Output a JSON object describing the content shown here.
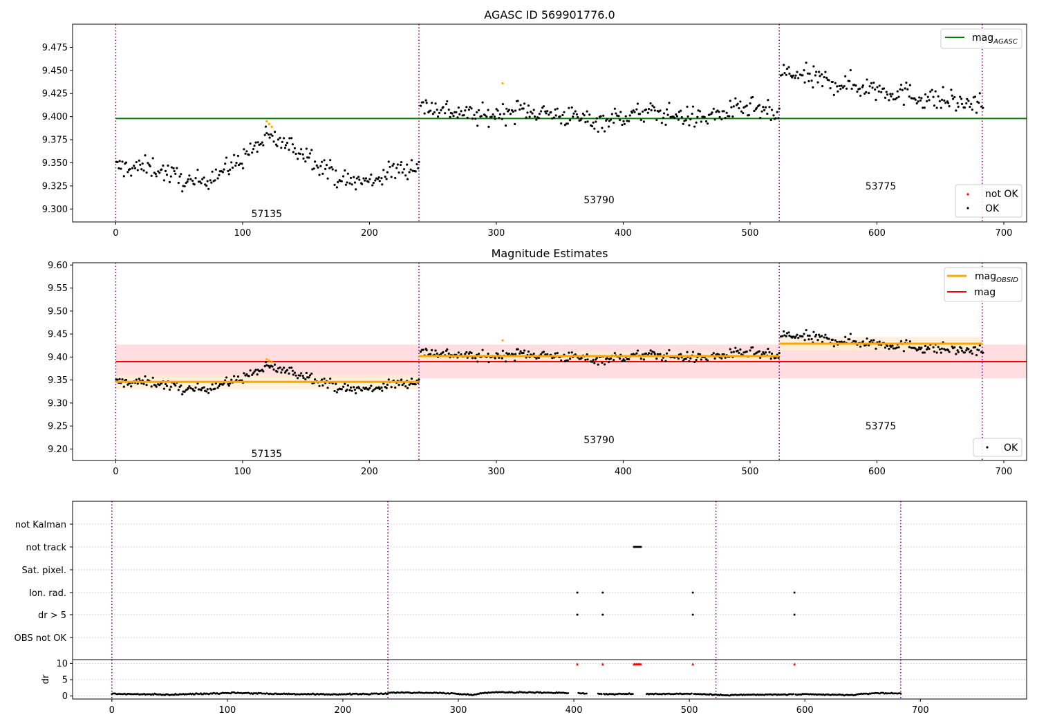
{
  "chart_data": [
    {
      "type": "scatter",
      "title": "AGASC ID 569901776.0",
      "xlim": [
        -34,
        718
      ],
      "ylim": [
        9.286,
        9.5
      ],
      "xticks": [
        0,
        100,
        200,
        300,
        400,
        500,
        600,
        700
      ],
      "yticks": [
        9.3,
        9.325,
        9.35,
        9.375,
        9.4,
        9.425,
        9.45,
        9.475
      ],
      "ytick_labels": [
        "9.300",
        "9.325",
        "9.350",
        "9.375",
        "9.400",
        "9.425",
        "9.450",
        "9.475"
      ],
      "obsid_boundaries": [
        0,
        239,
        523,
        683
      ],
      "obsid_labels": [
        {
          "text": "57135",
          "x": 119,
          "y": 9.295
        },
        {
          "text": "53790",
          "x": 381,
          "y": 9.31
        },
        {
          "text": "53775",
          "x": 603,
          "y": 9.325
        }
      ],
      "mag_agasc": 9.398,
      "mag_agasc_range": [
        0,
        718
      ],
      "segments": [
        {
          "start": 0,
          "end": 239,
          "trend": [
            [
              0,
              9.345
            ],
            [
              30,
              9.345
            ],
            [
              60,
              9.327
            ],
            [
              90,
              9.345
            ],
            [
              120,
              9.378
            ],
            [
              150,
              9.36
            ],
            [
              180,
              9.33
            ],
            [
              200,
              9.33
            ],
            [
              220,
              9.342
            ],
            [
              239,
              9.348
            ]
          ],
          "scatter": 0.008
        },
        {
          "start": 240,
          "end": 523,
          "trend": [
            [
              240,
              9.412
            ],
            [
              290,
              9.4
            ],
            [
              320,
              9.408
            ],
            [
              380,
              9.395
            ],
            [
              420,
              9.405
            ],
            [
              460,
              9.398
            ],
            [
              500,
              9.41
            ],
            [
              523,
              9.4
            ]
          ],
          "scatter": 0.008
        },
        {
          "start": 524,
          "end": 683,
          "trend": [
            [
              524,
              9.448
            ],
            [
              560,
              9.438
            ],
            [
              600,
              9.43
            ],
            [
              640,
              9.42
            ],
            [
              683,
              9.412
            ]
          ],
          "scatter": 0.009
        }
      ],
      "highlight_points": [
        {
          "x": 119,
          "y": 9.395
        },
        {
          "x": 121,
          "y": 9.392
        },
        {
          "x": 123,
          "y": 9.389
        },
        {
          "x": 305,
          "y": 9.436
        }
      ],
      "legend_upper": [
        "mag_AGASC"
      ],
      "legend_lower": [
        "not OK",
        "OK"
      ],
      "series": [
        {
          "name": "mag_AGASC",
          "color": "#008000",
          "kind": "line"
        },
        {
          "name": "not OK",
          "color": "#ff0000",
          "kind": "scatter"
        },
        {
          "name": "OK",
          "color": "#000000",
          "kind": "scatter"
        }
      ]
    },
    {
      "type": "scatter",
      "title": "Magnitude Estimates",
      "xlim": [
        -34,
        718
      ],
      "ylim": [
        9.175,
        9.605
      ],
      "xticks": [
        0,
        100,
        200,
        300,
        400,
        500,
        600,
        700
      ],
      "yticks": [
        9.2,
        9.25,
        9.3,
        9.35,
        9.4,
        9.45,
        9.5,
        9.55,
        9.6
      ],
      "ytick_labels": [
        "9.20",
        "9.25",
        "9.30",
        "9.35",
        "9.40",
        "9.45",
        "9.50",
        "9.55",
        "9.60"
      ],
      "mag": 9.39,
      "mag_band": [
        9.354,
        9.427
      ],
      "mag_range": [
        0,
        718
      ],
      "mag_obsid": [
        {
          "start": 0,
          "end": 239,
          "value": 9.346,
          "band": [
            9.33,
            9.362
          ]
        },
        {
          "start": 239,
          "end": 523,
          "value": 9.402,
          "band": [
            9.392,
            9.412
          ]
        },
        {
          "start": 523,
          "end": 683,
          "value": 9.429,
          "band": [
            9.414,
            9.444
          ]
        }
      ],
      "obsid_labels": [
        {
          "text": "57135",
          "x": 119,
          "y": 9.19
        },
        {
          "text": "53790",
          "x": 381,
          "y": 9.22
        },
        {
          "text": "53775",
          "x": 603,
          "y": 9.25
        }
      ],
      "legend_upper": [
        "mag_OBSID",
        "mag"
      ],
      "legend_lower": [
        "OK"
      ],
      "series": [
        {
          "name": "mag_OBSID",
          "color": "#ffa500",
          "kind": "line"
        },
        {
          "name": "mag",
          "color": "#ff0000",
          "kind": "line"
        },
        {
          "name": "OK",
          "color": "#000000",
          "kind": "scatter"
        }
      ]
    },
    {
      "type": "scatter",
      "xlim": [
        -34,
        792
      ],
      "xticks": [
        0,
        100,
        200,
        300,
        400,
        500,
        600,
        700
      ],
      "categories": [
        "not Kalman",
        "not track",
        "Sat. pixel.",
        "Ion. rad.",
        "dr > 5",
        "OBS not OK"
      ],
      "flag_points": {
        "not track": [
          452,
          453,
          454,
          455,
          456,
          457,
          458
        ],
        "Ion. rad.": [
          403,
          425,
          503,
          591
        ],
        "dr > 5": [
          403,
          425,
          503,
          591
        ]
      },
      "dr_ylim": [
        -0.5,
        10.5
      ],
      "dr_yticks": [
        0,
        5,
        10
      ],
      "dr_ylabel": "dr",
      "dr_clipped": [
        403,
        425,
        452,
        453,
        454,
        455,
        456,
        457,
        458,
        503,
        591
      ],
      "dr_gaps": [
        [
          396,
          402
        ],
        [
          412,
          420
        ],
        [
          459,
          462
        ]
      ],
      "dr_level_segments": [
        {
          "start": 0,
          "end": 239,
          "trend": [
            [
              0,
              0.7
            ],
            [
              50,
              0.4
            ],
            [
              105,
              1.0
            ],
            [
              140,
              0.7
            ],
            [
              180,
              0.5
            ],
            [
              239,
              0.7
            ]
          ]
        },
        {
          "start": 240,
          "end": 523,
          "trend": [
            [
              240,
              1.1
            ],
            [
              290,
              0.9
            ],
            [
              310,
              0.4
            ],
            [
              330,
              1.2
            ],
            [
              390,
              1.0
            ],
            [
              430,
              0.6
            ],
            [
              500,
              0.7
            ],
            [
              523,
              0.4
            ]
          ]
        },
        {
          "start": 524,
          "end": 683,
          "trend": [
            [
              524,
              0.3
            ],
            [
              600,
              0.5
            ],
            [
              640,
              0.3
            ],
            [
              660,
              0.9
            ],
            [
              683,
              0.8
            ]
          ]
        }
      ]
    }
  ],
  "colors": {
    "obsid_line": "#800080",
    "mag_agasc": "#008000",
    "mag": "#ff0000",
    "mag_band": "#ffdde0",
    "mag_obsid": "#ffa500",
    "mag_obsid_band": "#ffedd5",
    "ok": "#000000",
    "not_ok": "#ff0000",
    "highlight": "#ffa500",
    "grid": "#b0b0b0"
  }
}
